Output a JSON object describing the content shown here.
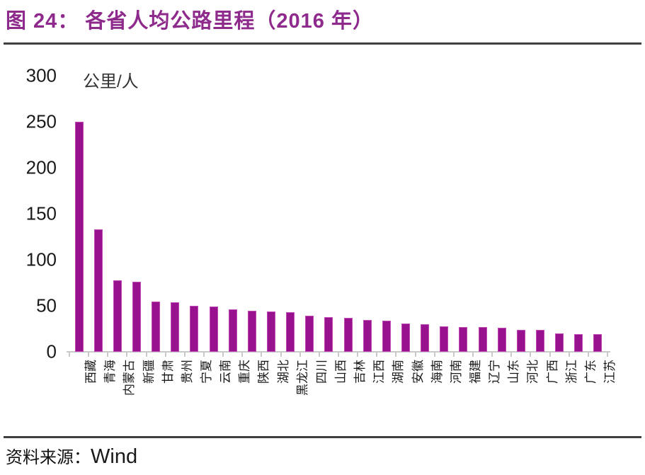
{
  "page": {
    "footer_label": "资料来源：",
    "footer_source": "Wind"
  },
  "colors": {
    "title_accent": "#8E2A8C",
    "bar_fill": "#98118F",
    "bar_edge": "#C04BB6",
    "axis_gray": "#C9C9C9",
    "rule_dark": "#3f3f3f"
  },
  "chart_data": {
    "type": "bar",
    "title": "图 24： 各省人均公路里程（2016 年）",
    "unit_label": "公里/人",
    "source": "Wind",
    "categories": [
      "西藏",
      "青海",
      "内蒙古",
      "新疆",
      "甘肃",
      "贵州",
      "宁夏",
      "云南",
      "重庆",
      "陕西",
      "湖北",
      "黑龙江",
      "四川",
      "山西",
      "吉林",
      "江西",
      "湖南",
      "安徽",
      "海南",
      "河南",
      "福建",
      "辽宁",
      "山东",
      "河北",
      "广西",
      "浙江",
      "广东",
      "江苏"
    ],
    "values": [
      250,
      133,
      78,
      76,
      55,
      54,
      50,
      49,
      46,
      45,
      44,
      43,
      39,
      38,
      37,
      35,
      34,
      31,
      30,
      28,
      27,
      27,
      26,
      24,
      24,
      20,
      19,
      19
    ],
    "ylim": [
      0,
      300
    ],
    "yticks": [
      0,
      50,
      100,
      150,
      200,
      250,
      300
    ],
    "grid": false,
    "legend": null,
    "x_label_rotation_deg": -90
  }
}
